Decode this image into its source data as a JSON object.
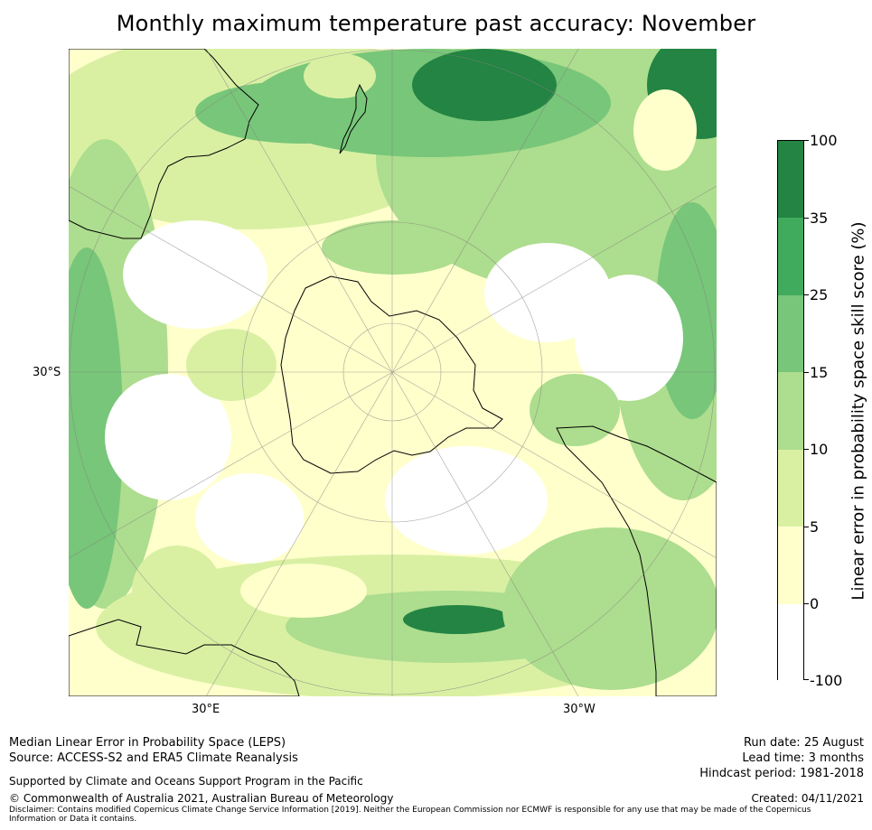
{
  "title": "Monthly maximum temperature past accuracy: November",
  "map": {
    "projection": "south polar stereographic",
    "lat_label": "30°S",
    "lon_labels": [
      "30°E",
      "30°W"
    ],
    "landmasses": [
      "Antarctica",
      "New Zealand",
      "Australia",
      "South America",
      "Africa"
    ],
    "values_shown": "LEPS skill score (%) field"
  },
  "colorbar": {
    "title": "Linear error in probability space skill score (%)",
    "ticks": [
      "100",
      "35",
      "25",
      "15",
      "10",
      "5",
      "0",
      "-100"
    ],
    "bins": [
      {
        "range": "25 to 35",
        "color": "#41ab5d"
      },
      {
        "range": "35 to 100",
        "color": "#238443"
      },
      {
        "range": "15 to 25",
        "color": "#78c679"
      },
      {
        "range": "10 to 15",
        "color": "#addd8e"
      },
      {
        "range": "5 to 10",
        "color": "#d9f0a3"
      },
      {
        "range": "0 to 5",
        "color": "#ffffcc"
      },
      {
        "range": "-100 to 0",
        "color": "#ffffff"
      }
    ]
  },
  "footer": {
    "line1": "Median Linear Error in Probability Space (LEPS)",
    "line2": "Source: ACCESS-S2 and ERA5 Climate Reanalysis",
    "supported": "Supported by Climate and Oceans Support Program in the Pacific",
    "copyright": "© Commonwealth of Australia 2021, Australian Bureau of Meteorology",
    "disclaimer": "Disclaimer: Contains modified Copernicus Climate Change Service Information [2019]. Neither the European Commission nor ECMWF is responsible for any use that may be made of the Copernicus Information or Data it contains.",
    "run_date": "Run date: 25 August",
    "lead_time": "Lead time: 3 months",
    "hindcast": "Hindcast period: 1981-2018",
    "created": "Created: 04/11/2021"
  }
}
